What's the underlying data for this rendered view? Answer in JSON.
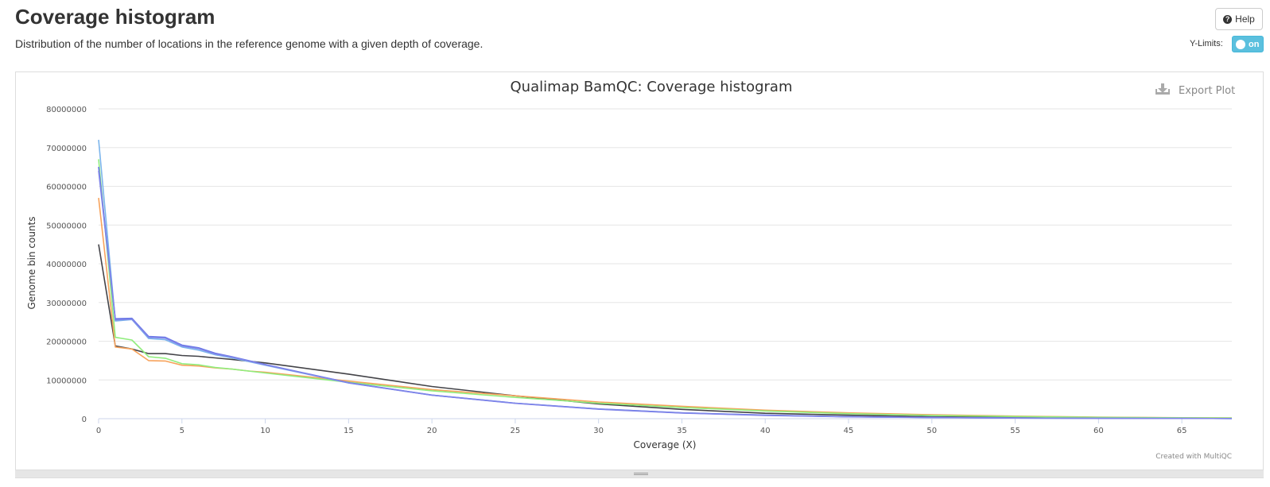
{
  "header": {
    "title": "Coverage histogram",
    "description": "Distribution of the number of locations in the reference genome with a given depth of coverage.",
    "help_label": "Help",
    "ylimits_label": "Y-Limits:",
    "ylimits_toggle": "on"
  },
  "plot": {
    "export_label": "Export Plot",
    "credit": "Created with MultiQC"
  },
  "chart_data": {
    "type": "line",
    "title": "Qualimap BamQC: Coverage histogram",
    "xlabel": "Coverage (X)",
    "ylabel": "Genome bin counts",
    "xlim": [
      0,
      68
    ],
    "ylim": [
      0,
      80000000
    ],
    "xticks": [
      0,
      5,
      10,
      15,
      20,
      25,
      30,
      35,
      40,
      45,
      50,
      55,
      60,
      65
    ],
    "yticks": [
      0,
      10000000,
      20000000,
      30000000,
      40000000,
      50000000,
      60000000,
      70000000,
      80000000
    ],
    "grid": true,
    "series": [
      {
        "color": "#434348",
        "points": [
          [
            0,
            45000000
          ],
          [
            1,
            18800000
          ],
          [
            2,
            18000000
          ],
          [
            3,
            16800000
          ],
          [
            4,
            16800000
          ],
          [
            5,
            16300000
          ],
          [
            6,
            16100000
          ],
          [
            7,
            15700000
          ],
          [
            8,
            15300000
          ],
          [
            10,
            14400000
          ],
          [
            15,
            11500000
          ],
          [
            20,
            8300000
          ],
          [
            25,
            5900000
          ],
          [
            30,
            3800000
          ],
          [
            35,
            2400000
          ],
          [
            40,
            1400000
          ],
          [
            45,
            900000
          ],
          [
            50,
            500000
          ],
          [
            55,
            300000
          ],
          [
            60,
            180000
          ],
          [
            65,
            100000
          ],
          [
            68,
            70000
          ]
        ]
      },
      {
        "color": "#f7a35c",
        "points": [
          [
            0,
            57000000
          ],
          [
            1,
            18500000
          ],
          [
            2,
            18000000
          ],
          [
            3,
            15000000
          ],
          [
            4,
            14900000
          ],
          [
            5,
            13800000
          ],
          [
            6,
            13600000
          ],
          [
            7,
            13100000
          ],
          [
            8,
            12800000
          ],
          [
            9,
            12300000
          ],
          [
            10,
            12000000
          ],
          [
            15,
            9700000
          ],
          [
            20,
            7500000
          ],
          [
            25,
            5900000
          ],
          [
            30,
            4300000
          ],
          [
            35,
            3200000
          ],
          [
            40,
            2200000
          ],
          [
            45,
            1500000
          ],
          [
            50,
            1000000
          ],
          [
            55,
            650000
          ],
          [
            60,
            400000
          ],
          [
            65,
            250000
          ],
          [
            68,
            180000
          ]
        ]
      },
      {
        "color": "#90ed7d",
        "points": [
          [
            0,
            67000000
          ],
          [
            1,
            21000000
          ],
          [
            2,
            20300000
          ],
          [
            3,
            16000000
          ],
          [
            4,
            15600000
          ],
          [
            5,
            14200000
          ],
          [
            6,
            13900000
          ],
          [
            7,
            13200000
          ],
          [
            8,
            12800000
          ],
          [
            10,
            11800000
          ],
          [
            15,
            9400000
          ],
          [
            20,
            7200000
          ],
          [
            25,
            5500000
          ],
          [
            30,
            4000000
          ],
          [
            35,
            2900000
          ],
          [
            40,
            2000000
          ],
          [
            45,
            1300000
          ],
          [
            50,
            850000
          ],
          [
            55,
            550000
          ],
          [
            60,
            350000
          ],
          [
            65,
            220000
          ],
          [
            68,
            160000
          ]
        ]
      },
      {
        "color": "#7cb5ec",
        "points": [
          [
            0,
            72000000
          ],
          [
            1,
            25200000
          ],
          [
            2,
            25600000
          ],
          [
            3,
            20700000
          ],
          [
            4,
            20400000
          ],
          [
            5,
            18500000
          ],
          [
            6,
            17700000
          ],
          [
            7,
            16500000
          ],
          [
            8,
            15700000
          ],
          [
            10,
            13800000
          ],
          [
            15,
            9200000
          ],
          [
            20,
            6100000
          ],
          [
            25,
            4000000
          ],
          [
            30,
            2500000
          ],
          [
            35,
            1500000
          ],
          [
            40,
            900000
          ],
          [
            45,
            500000
          ],
          [
            50,
            300000
          ],
          [
            55,
            170000
          ],
          [
            60,
            100000
          ],
          [
            65,
            60000
          ],
          [
            68,
            40000
          ]
        ]
      },
      {
        "color": "#6574e6",
        "points": [
          [
            0,
            65000000
          ],
          [
            1,
            25800000
          ],
          [
            2,
            25900000
          ],
          [
            3,
            21200000
          ],
          [
            4,
            21000000
          ],
          [
            5,
            19000000
          ],
          [
            6,
            18300000
          ],
          [
            7,
            16900000
          ],
          [
            8,
            16000000
          ],
          [
            10,
            14000000
          ],
          [
            15,
            9300000
          ],
          [
            20,
            6100000
          ],
          [
            25,
            4000000
          ],
          [
            30,
            2500000
          ],
          [
            35,
            1500000
          ],
          [
            40,
            900000
          ],
          [
            45,
            500000
          ],
          [
            50,
            300000
          ],
          [
            55,
            170000
          ],
          [
            60,
            100000
          ],
          [
            65,
            60000
          ],
          [
            68,
            40000
          ]
        ]
      },
      {
        "color": "#8085e9",
        "points": [
          [
            0,
            64000000
          ],
          [
            1,
            25500000
          ],
          [
            2,
            25700000
          ],
          [
            3,
            21000000
          ],
          [
            4,
            20800000
          ],
          [
            5,
            18800000
          ],
          [
            6,
            18100000
          ],
          [
            7,
            16700000
          ],
          [
            8,
            15900000
          ],
          [
            10,
            13900000
          ],
          [
            15,
            9250000
          ],
          [
            20,
            6050000
          ],
          [
            25,
            3950000
          ],
          [
            30,
            2450000
          ],
          [
            35,
            1450000
          ],
          [
            40,
            850000
          ],
          [
            45,
            480000
          ],
          [
            50,
            280000
          ],
          [
            55,
            160000
          ],
          [
            60,
            90000
          ],
          [
            65,
            55000
          ],
          [
            68,
            35000
          ]
        ]
      }
    ]
  }
}
